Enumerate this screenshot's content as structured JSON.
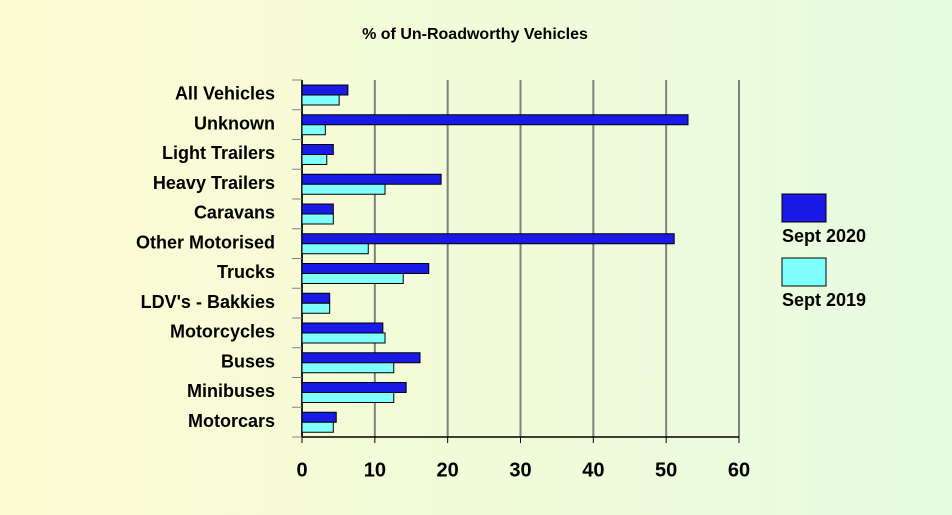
{
  "chart_data": {
    "type": "bar",
    "orientation": "horizontal",
    "title": "% of Un-Roadworthy Vehicles",
    "categories": [
      "All Vehicles",
      "Unknown",
      "Light Trailers",
      "Heavy Trailers",
      "Caravans",
      "Other Motorised",
      "Trucks",
      "LDV's - Bakkies",
      "Motorcycles",
      "Buses",
      "Minibuses",
      "Motorcars"
    ],
    "series": [
      {
        "name": "Sept 2020",
        "color": "#1a1ae6",
        "values": [
          6.3,
          53,
          4.3,
          19.1,
          4.3,
          51.1,
          17.4,
          3.8,
          11.1,
          16.2,
          14.3,
          4.7
        ]
      },
      {
        "name": "Sept 2019",
        "color": "#80ffff",
        "values": [
          5.1,
          3.2,
          3.4,
          11.4,
          4.3,
          9.1,
          13.9,
          3.8,
          11.4,
          12.6,
          12.6,
          4.3
        ]
      }
    ],
    "xlim": [
      0,
      60
    ],
    "xticks": [
      0,
      10,
      20,
      30,
      40,
      50,
      60
    ],
    "grid": true,
    "legend": "right"
  }
}
